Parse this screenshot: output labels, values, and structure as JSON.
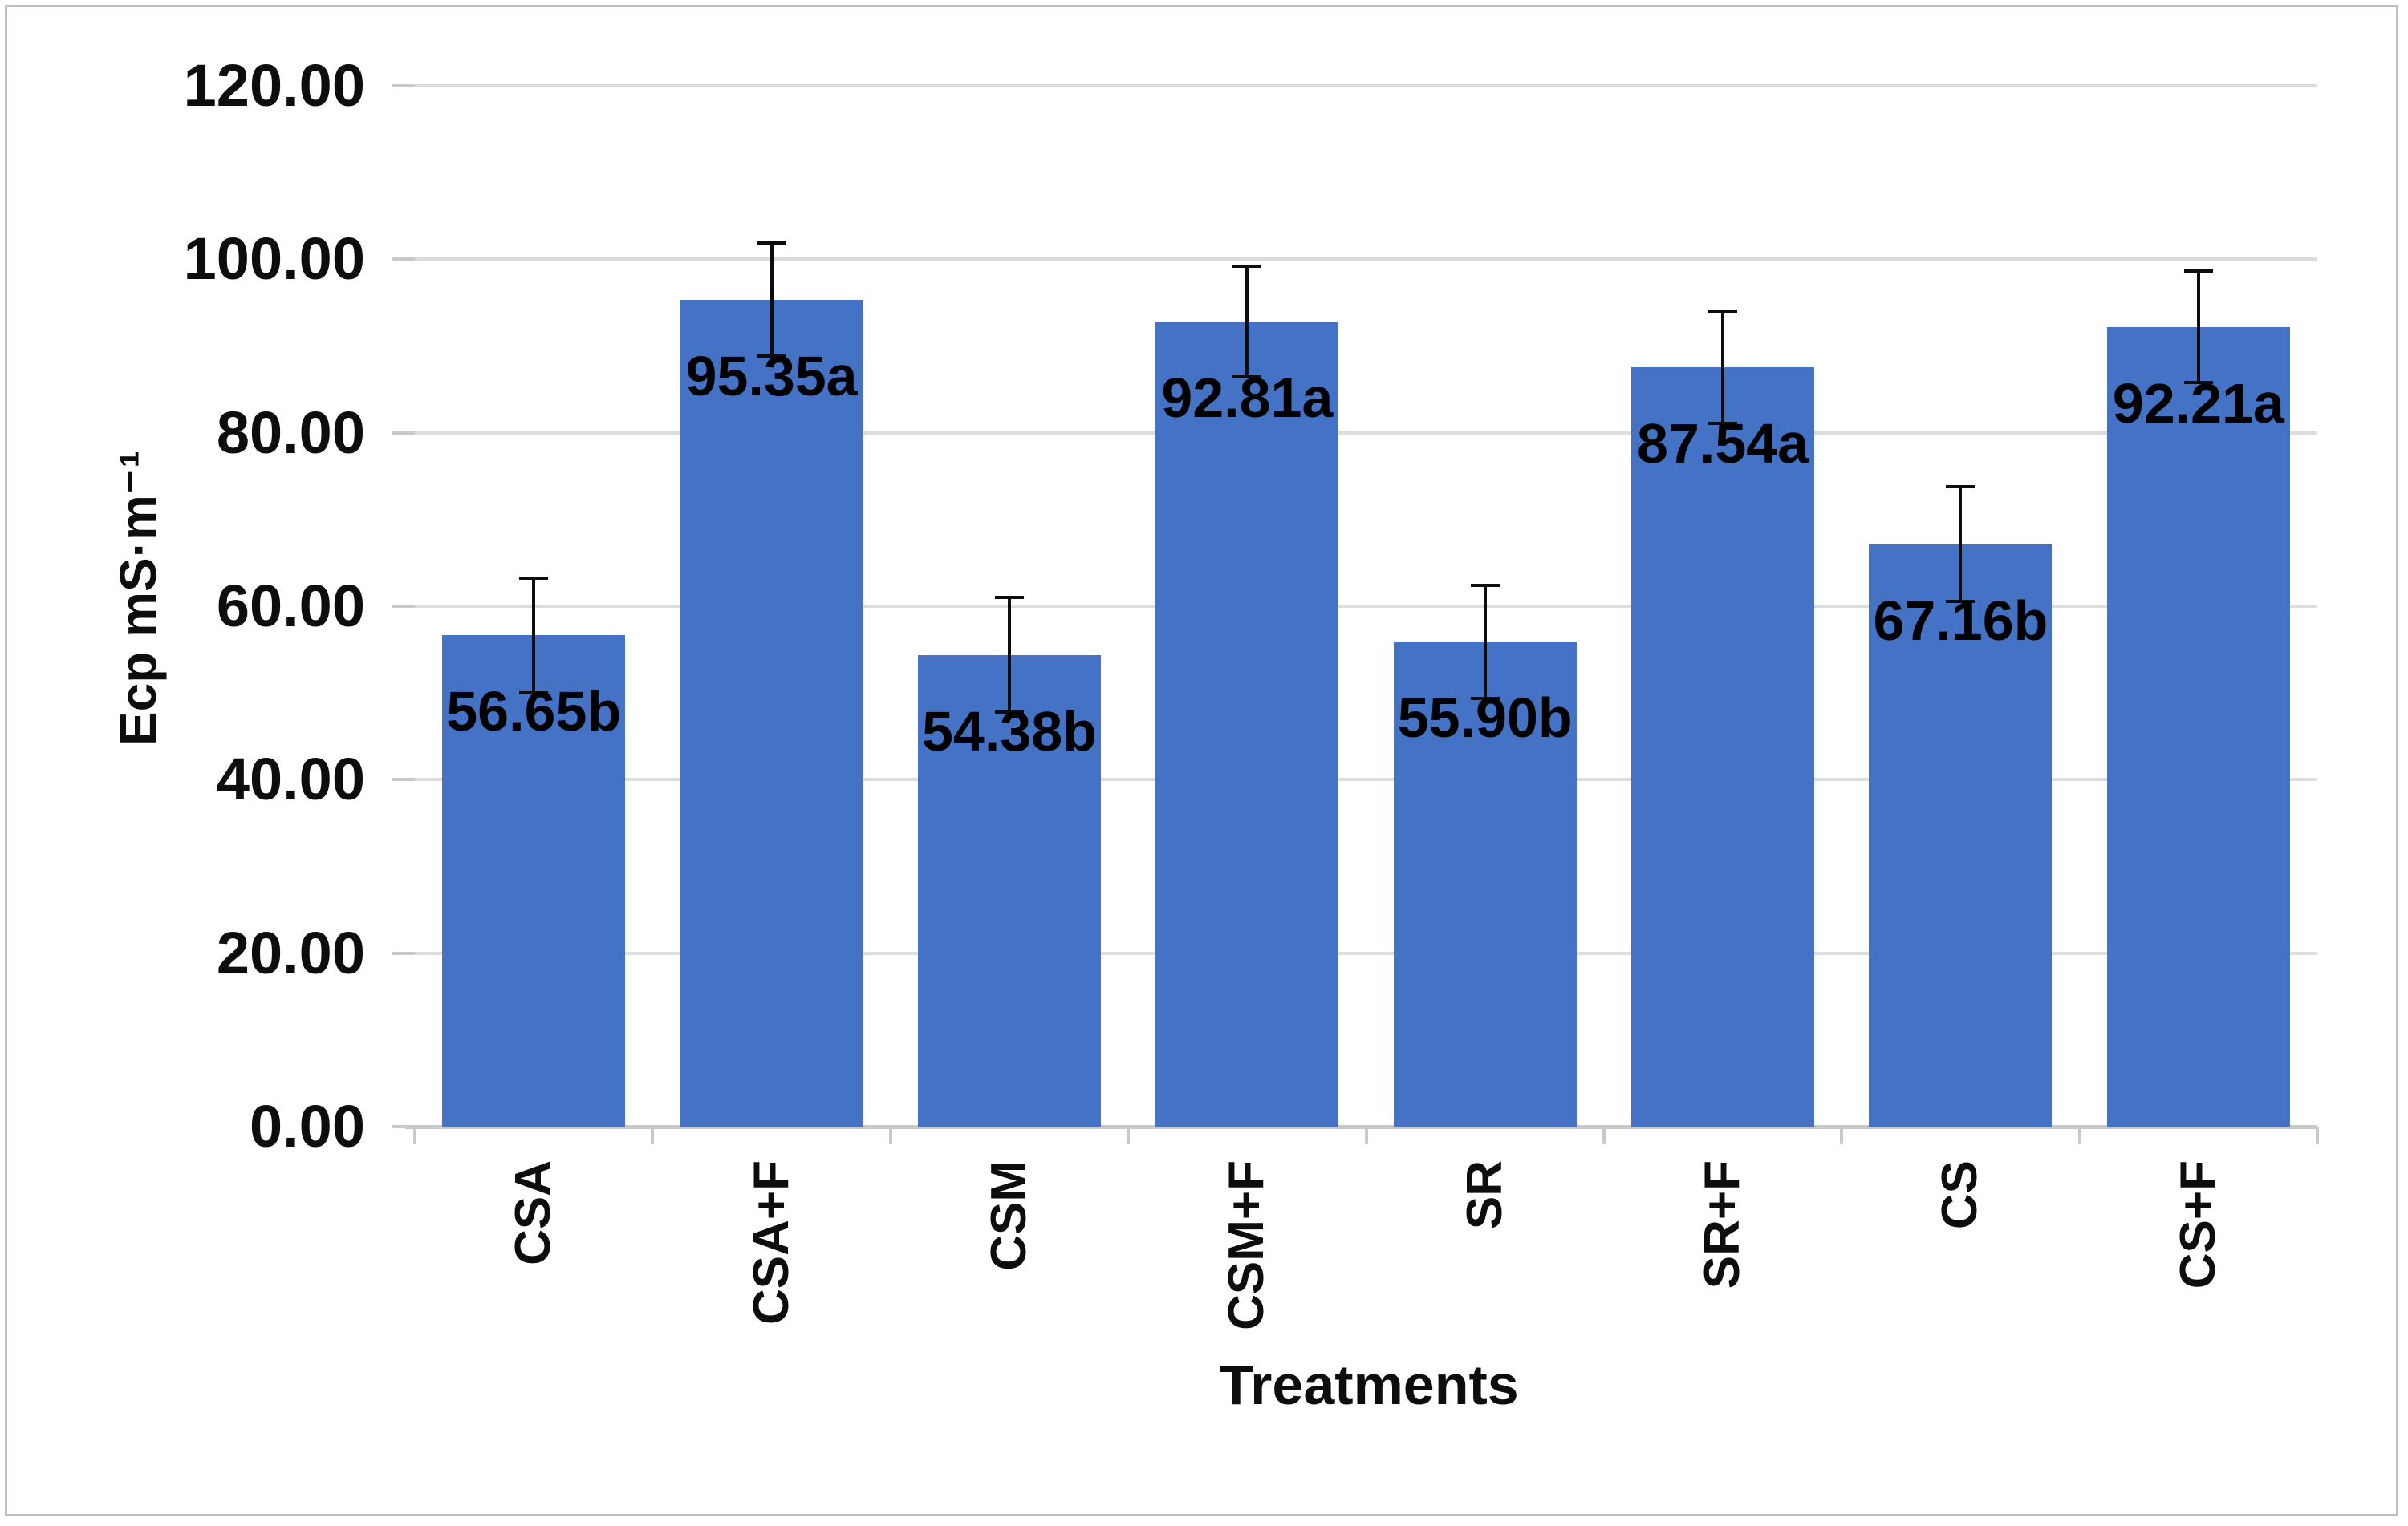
{
  "chart_data": {
    "type": "bar",
    "categories": [
      "CSA",
      "CSA+F",
      "CSM",
      "CSM+F",
      "SR",
      "SR+F",
      "CS",
      "CS+F"
    ],
    "values": [
      56.65,
      95.35,
      54.38,
      92.81,
      55.9,
      87.54,
      67.16,
      92.21
    ],
    "errors": [
      6.6,
      6.55,
      6.6,
      6.4,
      6.5,
      6.5,
      6.6,
      6.4
    ],
    "bar_labels": [
      "56.65b",
      "95.35a",
      "54.38b",
      "92.81a",
      "55.90b",
      "87.54a",
      "67.16b",
      "92.21a"
    ],
    "xlabel": "Treatments",
    "ylabel": "Ecp mS·m⁻¹",
    "ylim": [
      0,
      120
    ],
    "ytick_step": 20,
    "ytick_labels": [
      "0.00",
      "20.00",
      "40.00",
      "60.00",
      "80.00",
      "100.00",
      "120.00"
    ],
    "grid": true,
    "legend": false,
    "colors": {
      "bar": "#4472C4",
      "error_bar": "#0D0D0D",
      "gridline": "#DCDCDC",
      "axis_line": "#C9C9C9",
      "frame": "#BFBFBF",
      "text": "#000000"
    }
  }
}
